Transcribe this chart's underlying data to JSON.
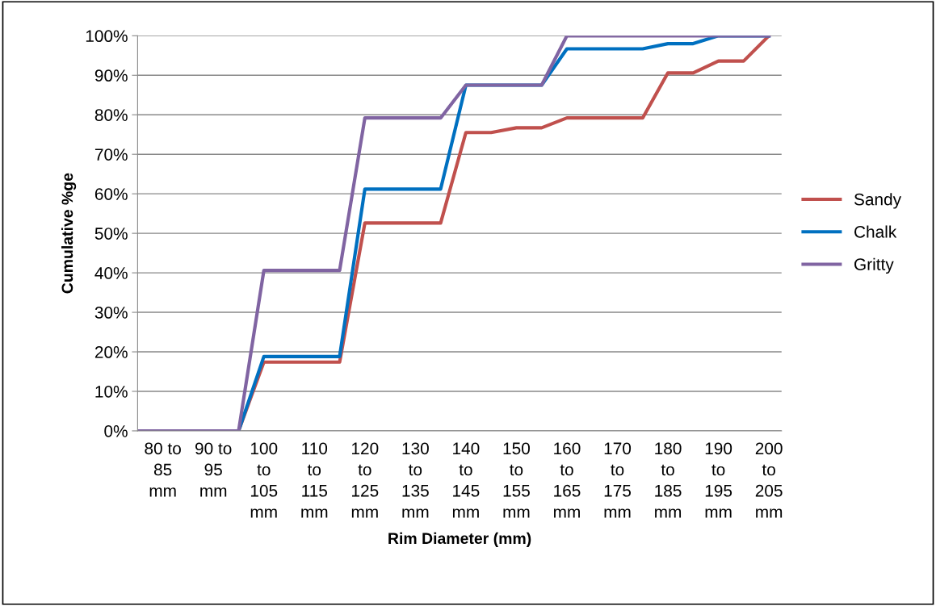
{
  "chart_data": {
    "type": "line",
    "xlabel": "Rim Diameter (mm)",
    "ylabel": "Cumulative %ge",
    "categories": [
      null,
      "80 to 85 mm",
      null,
      "90 to 95 mm",
      null,
      "100 to 105 mm",
      null,
      "110 to 115 mm",
      null,
      "120 to 125 mm",
      null,
      "130 to 135 mm",
      null,
      "140 to 145 mm",
      null,
      "150 to 155 mm",
      null,
      "160 to 165 mm",
      null,
      "170 to 175 mm",
      null,
      "180 to 185 mm",
      null,
      "190 to 195 mm",
      null,
      "200 to 205 mm"
    ],
    "series": [
      {
        "name": "Sandy",
        "color": "#c0504d",
        "values": [
          null,
          null,
          null,
          0,
          0,
          17.4,
          17.4,
          17.4,
          17.4,
          52.6,
          52.6,
          52.6,
          52.6,
          75.5,
          75.5,
          76.7,
          76.7,
          79.2,
          79.2,
          79.2,
          79.2,
          90.6,
          90.6,
          93.6,
          93.6,
          100
        ]
      },
      {
        "name": "Chalk",
        "color": "#0070c0",
        "values": [
          null,
          null,
          null,
          0,
          0,
          18.8,
          18.8,
          18.8,
          18.8,
          61.2,
          61.2,
          61.2,
          61.2,
          87.5,
          87.5,
          87.5,
          87.5,
          96.7,
          96.7,
          96.7,
          96.7,
          98,
          98,
          100,
          100,
          100
        ]
      },
      {
        "name": "Gritty",
        "color": "#8064a2",
        "values": [
          0,
          0,
          0,
          0,
          0,
          40.6,
          40.6,
          40.6,
          40.6,
          79.2,
          79.2,
          79.2,
          79.2,
          87.5,
          87.5,
          87.5,
          87.5,
          100,
          100,
          100,
          100,
          100,
          100,
          100,
          100,
          100
        ]
      }
    ],
    "ylim": [
      0,
      100
    ],
    "yticks": [
      {
        "value": 0,
        "label": "0%"
      },
      {
        "value": 10,
        "label": "10%"
      },
      {
        "value": 20,
        "label": "20%"
      },
      {
        "value": 30,
        "label": "30%"
      },
      {
        "value": 40,
        "label": "40%"
      },
      {
        "value": 50,
        "label": "50%"
      },
      {
        "value": 60,
        "label": "60%"
      },
      {
        "value": 70,
        "label": "70%"
      },
      {
        "value": 80,
        "label": "80%"
      },
      {
        "value": 90,
        "label": "90%"
      },
      {
        "value": 100,
        "label": "100%"
      }
    ],
    "grid": "y",
    "legend": "right",
    "marker": "none",
    "line_style": "solid"
  }
}
